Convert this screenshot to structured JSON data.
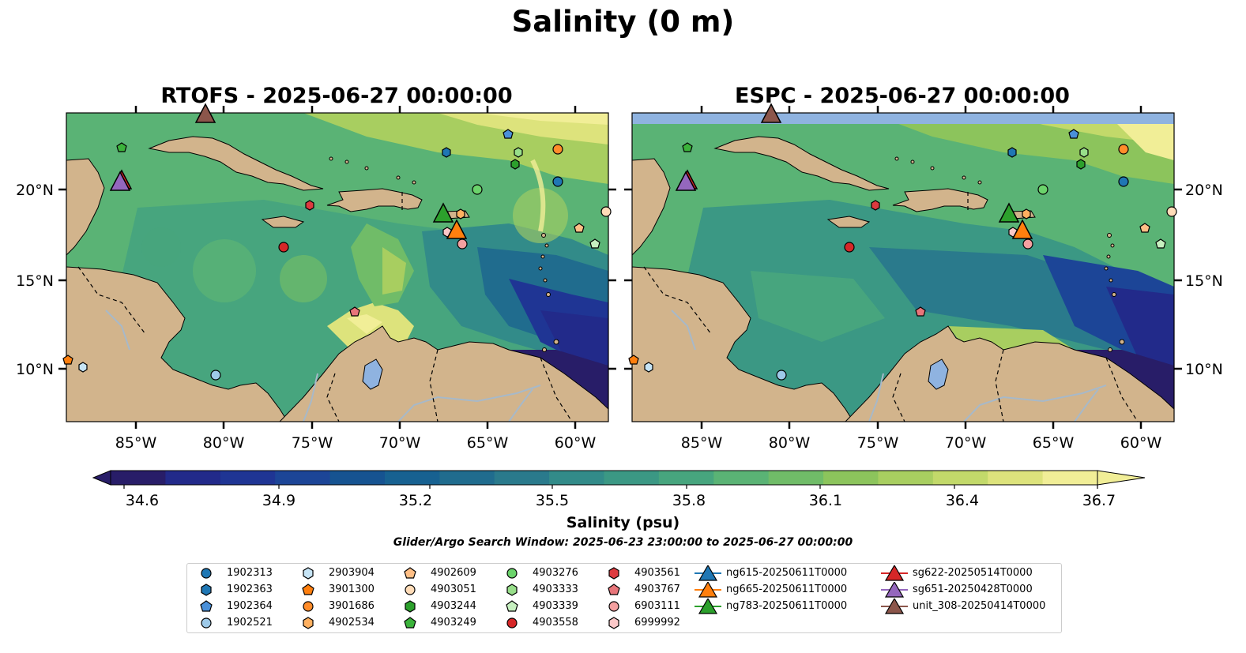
{
  "figure": {
    "suptitle": "Salinity (0 m)",
    "panels": [
      {
        "title": "RTOFS - 2025-06-27 00:00:00"
      },
      {
        "title": "ESPC - 2025-06-27 00:00:00"
      }
    ],
    "lat_labels": [
      "20°N",
      "15°N",
      "10°N"
    ],
    "lon_labels": [
      "85°W",
      "80°W",
      "75°W",
      "70°W",
      "65°W",
      "60°W"
    ],
    "colorbar": {
      "ticks": [
        "34.6",
        "34.9",
        "35.2",
        "35.5",
        "35.8",
        "36.1",
        "36.4",
        "36.7"
      ],
      "label": "Salinity (psu)",
      "vmin": 34.6,
      "vmax": 36.7,
      "colors": [
        "#281d68",
        "#222a8a",
        "#1f3594",
        "#1c4597",
        "#165391",
        "#176191",
        "#206c8e",
        "#2a7a8c",
        "#328b89",
        "#3b9884",
        "#47a57e",
        "#5ab375",
        "#70bc68",
        "#8cc45c",
        "#a8ce60",
        "#c2d96a",
        "#dde37c",
        "#f1ee97"
      ]
    },
    "search_window": "Glider/Argo Search Window: 2025-06-23 23:00:00 to 2025-06-27 00:00:00"
  },
  "legend": [
    {
      "label": "1902313",
      "marker": "circle",
      "color": "#1f77b4"
    },
    {
      "label": "1902363",
      "marker": "hexagon",
      "color": "#1f77b4"
    },
    {
      "label": "1902364",
      "marker": "pentagon",
      "color": "#4a90d9"
    },
    {
      "label": "1902521",
      "marker": "circle",
      "color": "#9ecae9"
    },
    {
      "label": "2903904",
      "marker": "hexagon",
      "color": "#c6e4f5"
    },
    {
      "label": "3901300",
      "marker": "pentagon",
      "color": "#ff7f0e"
    },
    {
      "label": "3901686",
      "marker": "circle",
      "color": "#ff8c2a"
    },
    {
      "label": "4902534",
      "marker": "hexagon",
      "color": "#ffb060"
    },
    {
      "label": "4902609",
      "marker": "pentagon",
      "color": "#ffbf86"
    },
    {
      "label": "4903051",
      "marker": "circle",
      "color": "#ffdcb8"
    },
    {
      "label": "4903244",
      "marker": "hexagon",
      "color": "#2ca02c"
    },
    {
      "label": "4903249",
      "marker": "pentagon",
      "color": "#3bb33b"
    },
    {
      "label": "4903276",
      "marker": "circle",
      "color": "#6bd36b"
    },
    {
      "label": "4903333",
      "marker": "hexagon",
      "color": "#98df8a"
    },
    {
      "label": "4903339",
      "marker": "pentagon",
      "color": "#c7f0c0"
    },
    {
      "label": "4903558",
      "marker": "circle",
      "color": "#d62728"
    },
    {
      "label": "4903561",
      "marker": "hexagon",
      "color": "#dd3a3f"
    },
    {
      "label": "4903767",
      "marker": "pentagon",
      "color": "#e8757a"
    },
    {
      "label": "6903111",
      "marker": "circle",
      "color": "#f4a0a0"
    },
    {
      "label": "6999992",
      "marker": "hexagon",
      "color": "#fbc8c8"
    },
    {
      "label": "ng615-20250611T0000",
      "marker": "triangle",
      "color": "#1f77b4"
    },
    {
      "label": "ng665-20250611T0000",
      "marker": "triangle",
      "color": "#ff7f0e"
    },
    {
      "label": "ng783-20250611T0000",
      "marker": "triangle",
      "color": "#2ca02c"
    },
    {
      "label": "sg622-20250514T0000",
      "marker": "triangle",
      "color": "#d62728"
    },
    {
      "label": "sg651-20250428T0000",
      "marker": "triangle",
      "color": "#9467bd"
    },
    {
      "label": "unit_308-20250414T0000",
      "marker": "triangle",
      "color": "#8c564b"
    }
  ],
  "colors": {
    "land": "#d2b48c",
    "lakes": "#8fb3e0",
    "rivers": "#a7b9c9",
    "deep": "#281d68",
    "mid": "#328b89",
    "high": "#5ab375",
    "fresh": "#f1ee97"
  }
}
